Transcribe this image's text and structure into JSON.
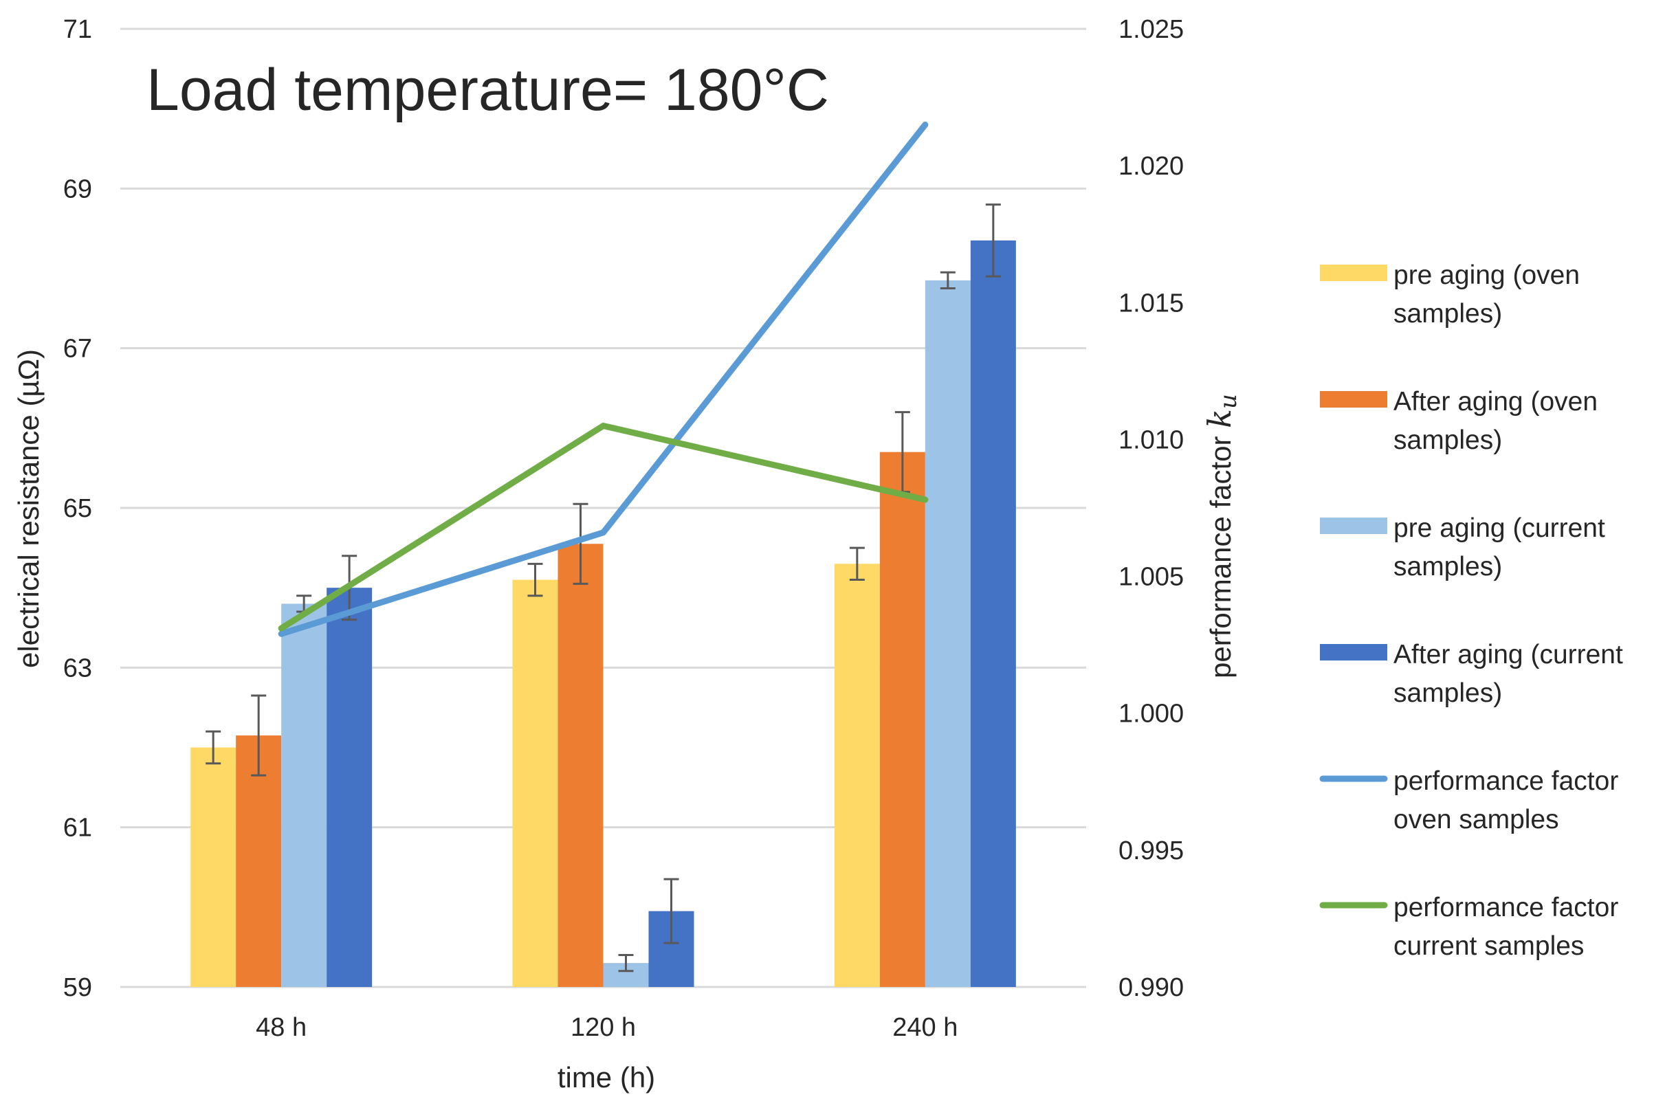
{
  "chart_data": {
    "type": "bar",
    "annotation": "Load temperature= 180°C",
    "xlabel": "time (h)",
    "ylabel": "electrical resistance (µΩ)",
    "y2label_text": "performance factor ",
    "y2label_symbol": "k",
    "y2label_subscript": "u",
    "categories": [
      "48 h",
      "120 h",
      "240 h"
    ],
    "ylim": [
      59,
      71
    ],
    "y_ticks": [
      "59",
      "61",
      "63",
      "65",
      "67",
      "69",
      "71"
    ],
    "y2lim": [
      0.99,
      1.025
    ],
    "y2_ticks": [
      "0.990",
      "0.995",
      "1.000",
      "1.005",
      "1.010",
      "1.015",
      "1.020",
      "1.025"
    ],
    "grid": true,
    "legend_position": "right",
    "bar_series": [
      {
        "name": "pre aging (oven samples)",
        "legend_lines": [
          "pre aging (oven",
          "samples)"
        ],
        "color": "#FFD966",
        "values": [
          62.0,
          64.1,
          64.3
        ],
        "errors": [
          0.2,
          0.2,
          0.2
        ]
      },
      {
        "name": "After aging (oven samples)",
        "legend_lines": [
          "After aging (oven",
          "samples)"
        ],
        "color": "#ED7D31",
        "values": [
          62.15,
          64.55,
          65.7
        ],
        "errors": [
          0.5,
          0.5,
          0.5
        ]
      },
      {
        "name": "pre aging (current samples)",
        "legend_lines": [
          "pre aging (current",
          "samples)"
        ],
        "color": "#9DC3E6",
        "values": [
          63.8,
          59.3,
          67.85
        ],
        "errors": [
          0.1,
          0.1,
          0.1
        ]
      },
      {
        "name": "After aging (current samples)",
        "legend_lines": [
          "After aging (current",
          "samples)"
        ],
        "color": "#4472C4",
        "values": [
          64.0,
          59.95,
          68.35
        ],
        "errors": [
          0.4,
          0.4,
          0.45
        ]
      }
    ],
    "line_series": [
      {
        "name": "performance factor oven samples",
        "legend_lines": [
          "performance factor",
          "oven samples"
        ],
        "color": "#5B9BD5",
        "axis": "secondary",
        "values": [
          1.0029,
          1.0066,
          1.0215
        ]
      },
      {
        "name": "performance factor current samples",
        "legend_lines": [
          "performance factor",
          "current samples"
        ],
        "color": "#70AD47",
        "axis": "secondary",
        "values": [
          1.0031,
          1.0105,
          1.0078
        ]
      }
    ]
  }
}
